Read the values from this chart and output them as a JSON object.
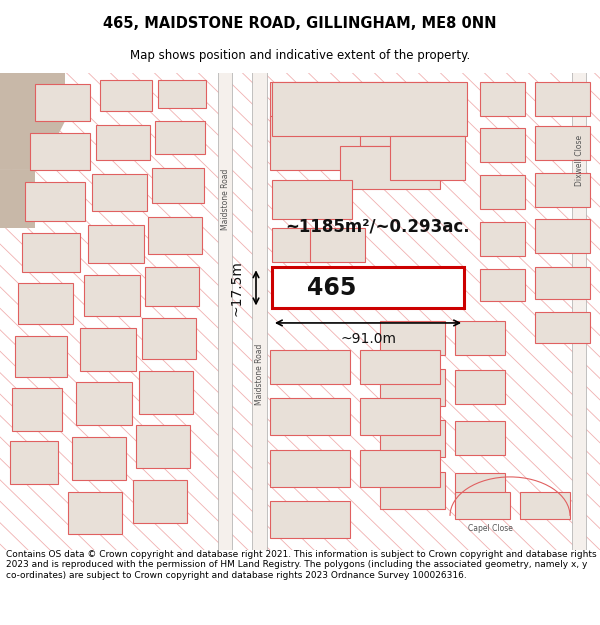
{
  "title": "465, MAIDSTONE ROAD, GILLINGHAM, ME8 0NN",
  "subtitle": "Map shows position and indicative extent of the property.",
  "footer": "Contains OS data © Crown copyright and database right 2021. This information is subject to Crown copyright and database rights 2023 and is reproduced with the permission of HM Land Registry. The polygons (including the associated geometry, namely x, y co-ordinates) are subject to Crown copyright and database rights 2023 Ordnance Survey 100026316.",
  "area_label": "~1185m²/~0.293ac.",
  "plot_number": "465",
  "dim_width": "~91.0m",
  "dim_height": "~17.5m",
  "road_label1": "Maidstone Road",
  "road_label2": "Maidstone Road",
  "dixwell_label": "Dixwell Close",
  "capel_label": "Capel Close",
  "map_bg": "#ffffff",
  "plot_fill": "#ffffff",
  "plot_border": "#cc0000",
  "building_fill": "#e8e0d8",
  "building_edge": "#e06060",
  "road_fill": "#f0ece8",
  "hatch_color": "#f0b0b0",
  "dark_corner": "#c8bdb0",
  "title_fontsize": 10.5,
  "subtitle_fontsize": 8.5,
  "footer_fontsize": 6.5
}
